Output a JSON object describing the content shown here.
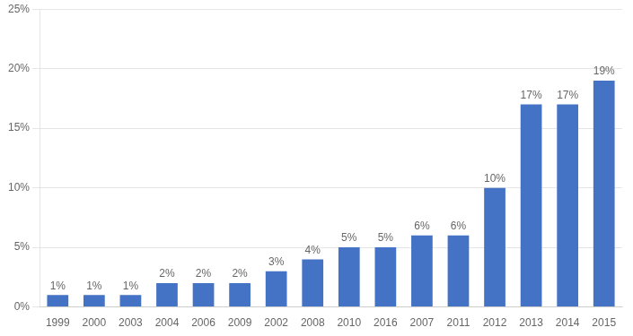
{
  "chart_data": {
    "type": "bar",
    "categories": [
      "1999",
      "2000",
      "2003",
      "2004",
      "2006",
      "2009",
      "2002",
      "2008",
      "2010",
      "2016",
      "2007",
      "2011",
      "2012",
      "2013",
      "2014",
      "2015"
    ],
    "values": [
      1,
      1,
      1,
      2,
      2,
      2,
      3,
      4,
      5,
      5,
      6,
      6,
      10,
      17,
      17,
      19
    ],
    "value_labels": [
      "1%",
      "1%",
      "1%",
      "2%",
      "2%",
      "2%",
      "3%",
      "4%",
      "5%",
      "5%",
      "6%",
      "6%",
      "10%",
      "17%",
      "17%",
      "19%"
    ],
    "data_labels": true,
    "color": "#4472C4",
    "ylim": [
      0,
      25
    ],
    "yticks": [
      {
        "value": 0,
        "label": "0%"
      },
      {
        "value": 5,
        "label": "5%"
      },
      {
        "value": 10,
        "label": "10%"
      },
      {
        "value": 15,
        "label": "15%"
      },
      {
        "value": 20,
        "label": "20%"
      },
      {
        "value": 25,
        "label": "25%"
      }
    ],
    "grid": true
  }
}
